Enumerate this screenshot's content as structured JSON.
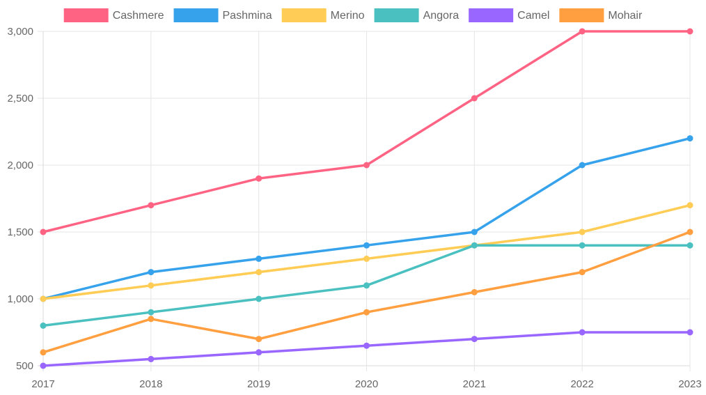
{
  "chart_data": {
    "type": "line",
    "title": "",
    "xlabel": "",
    "ylabel": "",
    "categories": [
      "2017",
      "2018",
      "2019",
      "2020",
      "2021",
      "2022",
      "2023"
    ],
    "ylim": [
      500,
      3000
    ],
    "yticks": [
      500,
      1000,
      1500,
      2000,
      2500,
      3000
    ],
    "ytick_labels": [
      "500",
      "1,000",
      "1,500",
      "2,000",
      "2,500",
      "3,000"
    ],
    "grid": true,
    "legend_position": "top",
    "series": [
      {
        "name": "Cashmere",
        "color": "#ff6384",
        "values": [
          1500,
          1700,
          1900,
          2000,
          2500,
          3000,
          3000
        ]
      },
      {
        "name": "Pashmina",
        "color": "#36a2eb",
        "values": [
          1000,
          1200,
          1300,
          1400,
          1500,
          2000,
          2200
        ]
      },
      {
        "name": "Merino",
        "color": "#ffcd56",
        "values": [
          1000,
          1100,
          1200,
          1300,
          1400,
          1500,
          1700
        ]
      },
      {
        "name": "Angora",
        "color": "#4bc0c0",
        "values": [
          800,
          900,
          1000,
          1100,
          1400,
          1400,
          1400
        ]
      },
      {
        "name": "Camel",
        "color": "#9966ff",
        "values": [
          500,
          550,
          600,
          650,
          700,
          750,
          750
        ]
      },
      {
        "name": "Mohair",
        "color": "#ff9f40",
        "values": [
          600,
          850,
          700,
          900,
          1050,
          1200,
          1500
        ]
      }
    ]
  }
}
